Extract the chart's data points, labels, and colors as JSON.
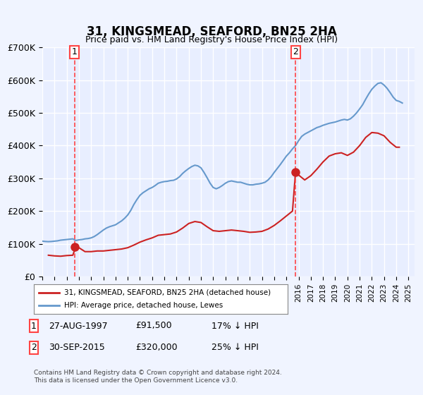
{
  "title": "31, KINGSMEAD, SEAFORD, BN25 2HA",
  "subtitle": "Price paid vs. HM Land Registry's House Price Index (HPI)",
  "ylabel": "",
  "xlabel": "",
  "ylim": [
    0,
    700000
  ],
  "xlim_start": 1995.0,
  "xlim_end": 2025.5,
  "yticks": [
    0,
    100000,
    200000,
    300000,
    400000,
    500000,
    600000,
    700000
  ],
  "ytick_labels": [
    "£0",
    "£100K",
    "£200K",
    "£300K",
    "£400K",
    "£500K",
    "£600K",
    "£700K"
  ],
  "background_color": "#f0f4ff",
  "plot_bg_color": "#e8eeff",
  "grid_color": "#ffffff",
  "hpi_color": "#6699cc",
  "price_color": "#cc2222",
  "marker_color": "#cc2222",
  "vline_color": "#ff4444",
  "transaction1_x": 1997.65,
  "transaction1_y": 91500,
  "transaction1_label": "1",
  "transaction2_x": 2015.75,
  "transaction2_y": 320000,
  "transaction2_label": "2",
  "legend_label_red": "31, KINGSMEAD, SEAFORD, BN25 2HA (detached house)",
  "legend_label_blue": "HPI: Average price, detached house, Lewes",
  "footnote1": "Contains HM Land Registry data © Crown copyright and database right 2024.",
  "footnote2": "This data is licensed under the Open Government Licence v3.0.",
  "table_rows": [
    {
      "num": "1",
      "date": "27-AUG-1997",
      "price": "£91,500",
      "hpi": "17% ↓ HPI"
    },
    {
      "num": "2",
      "date": "30-SEP-2015",
      "price": "£320,000",
      "hpi": "25% ↓ HPI"
    }
  ],
  "hpi_data_x": [
    1995.0,
    1995.25,
    1995.5,
    1995.75,
    1996.0,
    1996.25,
    1996.5,
    1996.75,
    1997.0,
    1997.25,
    1997.5,
    1997.75,
    1998.0,
    1998.25,
    1998.5,
    1998.75,
    1999.0,
    1999.25,
    1999.5,
    1999.75,
    2000.0,
    2000.25,
    2000.5,
    2000.75,
    2001.0,
    2001.25,
    2001.5,
    2001.75,
    2002.0,
    2002.25,
    2002.5,
    2002.75,
    2003.0,
    2003.25,
    2003.5,
    2003.75,
    2004.0,
    2004.25,
    2004.5,
    2004.75,
    2005.0,
    2005.25,
    2005.5,
    2005.75,
    2006.0,
    2006.25,
    2006.5,
    2006.75,
    2007.0,
    2007.25,
    2007.5,
    2007.75,
    2008.0,
    2008.25,
    2008.5,
    2008.75,
    2009.0,
    2009.25,
    2009.5,
    2009.75,
    2010.0,
    2010.25,
    2010.5,
    2010.75,
    2011.0,
    2011.25,
    2011.5,
    2011.75,
    2012.0,
    2012.25,
    2012.5,
    2012.75,
    2013.0,
    2013.25,
    2013.5,
    2013.75,
    2014.0,
    2014.25,
    2014.5,
    2014.75,
    2015.0,
    2015.25,
    2015.5,
    2015.75,
    2016.0,
    2016.25,
    2016.5,
    2016.75,
    2017.0,
    2017.25,
    2017.5,
    2017.75,
    2018.0,
    2018.25,
    2018.5,
    2018.75,
    2019.0,
    2019.25,
    2019.5,
    2019.75,
    2020.0,
    2020.25,
    2020.5,
    2020.75,
    2021.0,
    2021.25,
    2021.5,
    2021.75,
    2022.0,
    2022.25,
    2022.5,
    2022.75,
    2023.0,
    2023.25,
    2023.5,
    2023.75,
    2024.0,
    2024.25,
    2024.5
  ],
  "hpi_data_y": [
    108000,
    107000,
    106500,
    107000,
    108000,
    109000,
    111000,
    112000,
    113000,
    114000,
    115000,
    110000,
    112000,
    113000,
    115000,
    116000,
    118000,
    122000,
    128000,
    135000,
    142000,
    148000,
    152000,
    155000,
    158000,
    164000,
    170000,
    178000,
    188000,
    202000,
    220000,
    235000,
    248000,
    256000,
    262000,
    268000,
    272000,
    278000,
    285000,
    288000,
    290000,
    291000,
    293000,
    294000,
    298000,
    305000,
    315000,
    323000,
    330000,
    336000,
    340000,
    338000,
    332000,
    318000,
    302000,
    285000,
    272000,
    268000,
    272000,
    278000,
    285000,
    290000,
    292000,
    290000,
    288000,
    288000,
    285000,
    282000,
    280000,
    280000,
    282000,
    283000,
    285000,
    288000,
    295000,
    305000,
    318000,
    330000,
    342000,
    355000,
    368000,
    378000,
    390000,
    400000,
    415000,
    428000,
    435000,
    440000,
    445000,
    450000,
    455000,
    458000,
    462000,
    465000,
    468000,
    470000,
    472000,
    475000,
    478000,
    480000,
    478000,
    482000,
    490000,
    500000,
    512000,
    525000,
    542000,
    558000,
    572000,
    582000,
    590000,
    592000,
    585000,
    575000,
    562000,
    548000,
    538000,
    535000,
    530000
  ],
  "price_data_x": [
    1995.5,
    1996.0,
    1996.5,
    1997.0,
    1997.5,
    1997.75,
    1998.0,
    1998.5,
    1999.0,
    1999.5,
    2000.0,
    2000.5,
    2001.0,
    2001.5,
    2002.0,
    2002.5,
    2003.0,
    2003.5,
    2004.0,
    2004.5,
    2005.0,
    2005.5,
    2006.0,
    2006.5,
    2007.0,
    2007.5,
    2008.0,
    2008.5,
    2009.0,
    2009.5,
    2010.0,
    2010.5,
    2011.0,
    2011.5,
    2012.0,
    2012.5,
    2013.0,
    2013.5,
    2014.0,
    2014.5,
    2015.0,
    2015.5,
    2015.75,
    2016.0,
    2016.5,
    2017.0,
    2017.5,
    2018.0,
    2018.5,
    2019.0,
    2019.5,
    2020.0,
    2020.5,
    2021.0,
    2021.5,
    2022.0,
    2022.5,
    2023.0,
    2023.5,
    2024.0,
    2024.25
  ],
  "price_data_y": [
    65000,
    63000,
    62000,
    64000,
    65000,
    91500,
    88000,
    76000,
    76000,
    78000,
    78000,
    80000,
    82000,
    84000,
    88000,
    96000,
    105000,
    112000,
    118000,
    126000,
    128000,
    130000,
    136000,
    148000,
    162000,
    168000,
    165000,
    152000,
    140000,
    138000,
    140000,
    142000,
    140000,
    138000,
    135000,
    136000,
    138000,
    145000,
    156000,
    170000,
    185000,
    200000,
    320000,
    310000,
    295000,
    308000,
    328000,
    350000,
    368000,
    375000,
    378000,
    370000,
    380000,
    400000,
    425000,
    440000,
    438000,
    430000,
    410000,
    395000,
    395000
  ]
}
